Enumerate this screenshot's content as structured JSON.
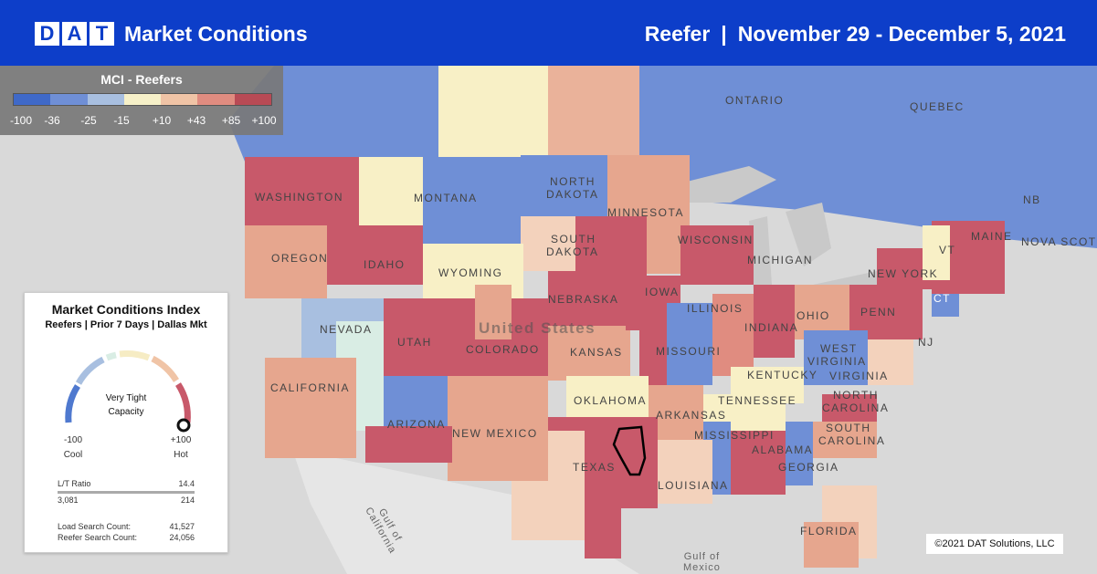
{
  "header": {
    "logo_letters": [
      "D",
      "A",
      "T"
    ],
    "title": "Market Conditions",
    "equipment": "Reefer",
    "separator": "|",
    "date_range": "November 29 - December 5, 2021",
    "bg_color": "#0d3ec9"
  },
  "legend": {
    "title": "MCI - Reefers",
    "ticks": [
      "-100",
      "-36",
      "-25",
      "-15",
      "+10",
      "+43",
      "+85",
      "+100"
    ],
    "colors": [
      "#3f69c8",
      "#6f8fd6",
      "#a8bfe0",
      "#f6f0c8",
      "#f0c4a6",
      "#e08c80",
      "#b84a55"
    ]
  },
  "card": {
    "title": "Market Conditions Index",
    "subtitle": "Reefers | Prior 7 Days | Dallas Mkt",
    "status_line1": "Very Tight",
    "status_line2": "Capacity",
    "min_label": "-100",
    "max_label": "+100",
    "min_desc": "Cool",
    "max_desc": "Hot",
    "gauge_value": 100,
    "lt_ratio_label": "L/T Ratio",
    "lt_ratio_value": "14.4",
    "lt_left": "3,081",
    "lt_right": "214",
    "load_search_label": "Load Search Count:",
    "load_search_value": "41,527",
    "reefer_search_label": "Reefer Search Count:",
    "reefer_search_value": "24,056"
  },
  "map_labels": {
    "ontario": "ONTARIO",
    "quebec": "QUEBEC",
    "washington": "WASHINGTON",
    "montana": "MONTANA",
    "north_dakota_1": "NORTH",
    "north_dakota_2": "DAKOTA",
    "minnesota": "MINNESOTA",
    "oregon": "OREGON",
    "idaho": "IDAHO",
    "wyoming": "WYOMING",
    "south_dakota_1": "SOUTH",
    "south_dakota_2": "DAKOTA",
    "wisconsin": "WISCONSIN",
    "michigan": "MICHIGAN",
    "nebraska": "NEBRASKA",
    "iowa": "IOWA",
    "nevada": "NEVADA",
    "utah": "UTAH",
    "colorado": "COLORADO",
    "united_states": "United States",
    "kansas": "KANSAS",
    "illinois": "ILLINOIS",
    "indiana": "INDIANA",
    "ohio": "OHIO",
    "penn": "PENN",
    "new_york": "NEW YORK",
    "maine": "MAINE",
    "nb": "NB",
    "nova_scotia": "NOVA SCOTIA",
    "vt": "VT",
    "ct": "CT",
    "nj": "NJ",
    "california": "CALIFORNIA",
    "arizona": "ARIZONA",
    "new_mexico": "NEW MEXICO",
    "oklahoma": "OKLAHOMA",
    "missouri": "MISSOURI",
    "kentucky": "KENTUCKY",
    "west_virginia_1": "WEST",
    "west_virginia_2": "VIRGINIA",
    "virginia": "VIRGINIA",
    "tennessee": "TENNESSEE",
    "arkansas": "ARKANSAS",
    "north_carolina_1": "NORTH",
    "north_carolina_2": "CAROLINA",
    "south_carolina_1": "SOUTH",
    "south_carolina_2": "CAROLINA",
    "mississippi": "MISSISSIPPI",
    "alabama": "ALABAMA",
    "georgia": "GEORGIA",
    "texas": "TEXAS",
    "louisiana": "LOUISIANA",
    "florida": "FLORIDA",
    "gulf_calif_1": "Gulf of",
    "gulf_calif_2": "California",
    "gulf_mex_1": "Gulf of",
    "gulf_mex_2": "Mexico"
  },
  "copyright": "©2021 DAT Solutions, LLC"
}
